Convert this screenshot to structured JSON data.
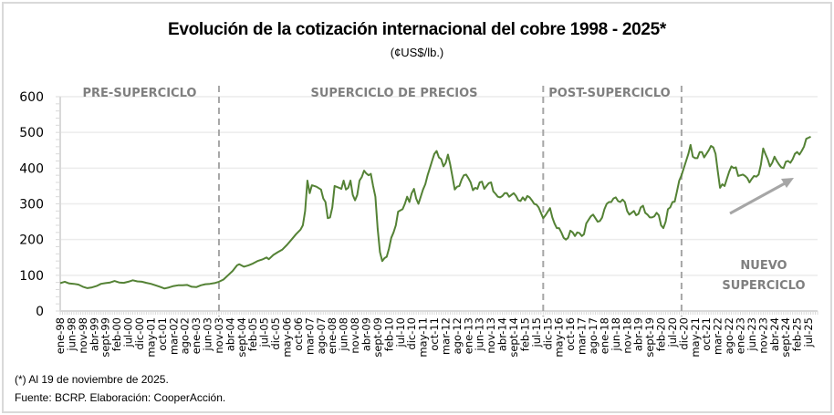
{
  "header": {
    "title": "Evolución de la cotización internacional del cobre 1998 - 2025*",
    "subtitle": "(¢US$/lb.)"
  },
  "footer": {
    "note": "(*) Al 19  de noviembre de 2025.",
    "source": "Fuente: BCRP. Elaboración: CooperAcción."
  },
  "colors": {
    "line": "#548235",
    "grid": "#ececec",
    "axis": "#d9d9d9",
    "divider": "#a6a6a6",
    "phase_text": "#7f7f7f",
    "arrow": "#a6a6a6"
  },
  "chart_data": {
    "type": "line",
    "title": "Evolución de la cotización internacional del cobre 1998 - 2025*",
    "subtitle": "(¢US$/lb.)",
    "xlabel": "",
    "ylabel": "",
    "ylim": [
      0,
      600
    ],
    "yticks": [
      0,
      100,
      200,
      300,
      400,
      500,
      600
    ],
    "grid": true,
    "legend": "none",
    "x_start": "ene-98",
    "x_step_months": 5,
    "xticks": [
      "ene-98",
      "jun-98",
      "nov-98",
      "abr-99",
      "sept-99",
      "feb-00",
      "jul-00",
      "dic-00",
      "may-01",
      "oct-01",
      "mar-02",
      "ago-02",
      "ene-03",
      "jun-03",
      "nov-03",
      "abr-04",
      "sept-04",
      "feb-05",
      "jul-05",
      "dic-05",
      "may-06",
      "oct-06",
      "mar-07",
      "ago-07",
      "ene-08",
      "jun-08",
      "nov-08",
      "abr-09",
      "sept-09",
      "feb-10",
      "jul-10",
      "dic-10",
      "may-11",
      "oct-11",
      "mar-12",
      "ago-12",
      "ene-13",
      "jun-13",
      "nov-13",
      "abr-14",
      "sept-14",
      "feb-15",
      "jul-15",
      "dic-15",
      "may-16",
      "oct-16",
      "mar-17",
      "ago-17",
      "ene-18",
      "jun-18",
      "nov-18",
      "abr-19",
      "sept-19",
      "feb-20",
      "jul-20",
      "dic-20",
      "may-21",
      "oct-21",
      "mar-22",
      "ago-22",
      "ene-23",
      "jun-23",
      "nov-23",
      "abr-24",
      "sept-24",
      "feb-25",
      "jul-25"
    ],
    "series": [
      {
        "name": "Cotización del cobre (¢US$/lb.)",
        "points_month_index_value": [
          [
            0,
            78
          ],
          [
            2,
            82
          ],
          [
            4,
            77
          ],
          [
            6,
            76
          ],
          [
            8,
            74
          ],
          [
            10,
            68
          ],
          [
            12,
            64
          ],
          [
            14,
            66
          ],
          [
            16,
            70
          ],
          [
            18,
            76
          ],
          [
            20,
            78
          ],
          [
            22,
            80
          ],
          [
            24,
            84
          ],
          [
            26,
            80
          ],
          [
            28,
            79
          ],
          [
            30,
            82
          ],
          [
            32,
            86
          ],
          [
            34,
            83
          ],
          [
            36,
            82
          ],
          [
            38,
            79
          ],
          [
            40,
            76
          ],
          [
            42,
            72
          ],
          [
            44,
            68
          ],
          [
            46,
            63
          ],
          [
            48,
            66
          ],
          [
            50,
            70
          ],
          [
            52,
            72
          ],
          [
            54,
            72
          ],
          [
            56,
            73
          ],
          [
            58,
            68
          ],
          [
            60,
            67
          ],
          [
            62,
            72
          ],
          [
            64,
            75
          ],
          [
            66,
            76
          ],
          [
            68,
            78
          ],
          [
            70,
            82
          ],
          [
            72,
            88
          ],
          [
            74,
            100
          ],
          [
            76,
            112
          ],
          [
            78,
            128
          ],
          [
            79,
            131
          ],
          [
            81,
            124
          ],
          [
            83,
            128
          ],
          [
            85,
            133
          ],
          [
            87,
            140
          ],
          [
            89,
            144
          ],
          [
            91,
            150
          ],
          [
            92,
            145
          ],
          [
            94,
            157
          ],
          [
            96,
            165
          ],
          [
            98,
            172
          ],
          [
            100,
            185
          ],
          [
            102,
            200
          ],
          [
            104,
            215
          ],
          [
            106,
            228
          ],
          [
            107,
            240
          ],
          [
            108,
            280
          ],
          [
            109,
            365
          ],
          [
            110,
            330
          ],
          [
            111,
            352
          ],
          [
            113,
            348
          ],
          [
            115,
            340
          ],
          [
            116,
            315
          ],
          [
            117,
            305
          ],
          [
            118,
            260
          ],
          [
            119,
            262
          ],
          [
            120,
            290
          ],
          [
            121,
            350
          ],
          [
            123,
            345
          ],
          [
            124,
            342
          ],
          [
            125,
            365
          ],
          [
            126,
            340
          ],
          [
            127,
            345
          ],
          [
            128,
            365
          ],
          [
            129,
            325
          ],
          [
            130,
            310
          ],
          [
            131,
            325
          ],
          [
            132,
            365
          ],
          [
            133,
            375
          ],
          [
            134,
            393
          ],
          [
            135,
            385
          ],
          [
            136,
            380
          ],
          [
            137,
            384
          ],
          [
            138,
            350
          ],
          [
            139,
            320
          ],
          [
            140,
            230
          ],
          [
            141,
            165
          ],
          [
            142,
            140
          ],
          [
            143,
            148
          ],
          [
            144,
            152
          ],
          [
            145,
            175
          ],
          [
            146,
            205
          ],
          [
            147,
            220
          ],
          [
            148,
            240
          ],
          [
            149,
            278
          ],
          [
            150,
            282
          ],
          [
            151,
            285
          ],
          [
            152,
            300
          ],
          [
            153,
            320
          ],
          [
            154,
            305
          ],
          [
            155,
            330
          ],
          [
            156,
            342
          ],
          [
            157,
            315
          ],
          [
            158,
            300
          ],
          [
            159,
            320
          ],
          [
            160,
            340
          ],
          [
            161,
            355
          ],
          [
            162,
            380
          ],
          [
            163,
            400
          ],
          [
            164,
            420
          ],
          [
            165,
            440
          ],
          [
            166,
            448
          ],
          [
            167,
            430
          ],
          [
            168,
            425
          ],
          [
            169,
            405
          ],
          [
            170,
            415
          ],
          [
            171,
            438
          ],
          [
            172,
            410
          ],
          [
            173,
            375
          ],
          [
            174,
            340
          ],
          [
            175,
            348
          ],
          [
            176,
            350
          ],
          [
            177,
            368
          ],
          [
            178,
            380
          ],
          [
            179,
            382
          ],
          [
            180,
            372
          ],
          [
            181,
            360
          ],
          [
            182,
            338
          ],
          [
            183,
            345
          ],
          [
            184,
            342
          ],
          [
            185,
            360
          ],
          [
            186,
            362
          ],
          [
            187,
            342
          ],
          [
            188,
            350
          ],
          [
            189,
            358
          ],
          [
            190,
            360
          ],
          [
            191,
            335
          ],
          [
            192,
            328
          ],
          [
            193,
            320
          ],
          [
            194,
            318
          ],
          [
            195,
            322
          ],
          [
            196,
            330
          ],
          [
            197,
            330
          ],
          [
            198,
            320
          ],
          [
            199,
            325
          ],
          [
            200,
            330
          ],
          [
            201,
            322
          ],
          [
            202,
            310
          ],
          [
            203,
            308
          ],
          [
            204,
            318
          ],
          [
            205,
            310
          ],
          [
            206,
            322
          ],
          [
            207,
            318
          ],
          [
            208,
            310
          ],
          [
            209,
            300
          ],
          [
            210,
            298
          ],
          [
            211,
            290
          ],
          [
            212,
            275
          ],
          [
            213,
            260
          ],
          [
            214,
            268
          ],
          [
            215,
            278
          ],
          [
            216,
            288
          ],
          [
            217,
            262
          ],
          [
            218,
            245
          ],
          [
            219,
            232
          ],
          [
            220,
            232
          ],
          [
            221,
            220
          ],
          [
            222,
            205
          ],
          [
            223,
            200
          ],
          [
            224,
            205
          ],
          [
            225,
            225
          ],
          [
            226,
            220
          ],
          [
            227,
            210
          ],
          [
            228,
            220
          ],
          [
            229,
            218
          ],
          [
            230,
            210
          ],
          [
            231,
            215
          ],
          [
            232,
            245
          ],
          [
            233,
            255
          ],
          [
            234,
            265
          ],
          [
            235,
            270
          ],
          [
            236,
            260
          ],
          [
            237,
            250
          ],
          [
            238,
            252
          ],
          [
            239,
            262
          ],
          [
            240,
            285
          ],
          [
            241,
            300
          ],
          [
            242,
            305
          ],
          [
            243,
            305
          ],
          [
            244,
            315
          ],
          [
            245,
            318
          ],
          [
            246,
            308
          ],
          [
            247,
            305
          ],
          [
            248,
            312
          ],
          [
            249,
            305
          ],
          [
            250,
            280
          ],
          [
            251,
            270
          ],
          [
            252,
            275
          ],
          [
            253,
            280
          ],
          [
            254,
            268
          ],
          [
            255,
            272
          ],
          [
            256,
            290
          ],
          [
            257,
            295
          ],
          [
            258,
            275
          ],
          [
            259,
            270
          ],
          [
            260,
            262
          ],
          [
            261,
            262
          ],
          [
            262,
            265
          ],
          [
            263,
            275
          ],
          [
            264,
            268
          ],
          [
            265,
            240
          ],
          [
            266,
            232
          ],
          [
            267,
            250
          ],
          [
            268,
            285
          ],
          [
            269,
            290
          ],
          [
            270,
            305
          ],
          [
            271,
            306
          ],
          [
            272,
            335
          ],
          [
            273,
            365
          ],
          [
            274,
            380
          ],
          [
            275,
            400
          ],
          [
            276,
            420
          ],
          [
            277,
            440
          ],
          [
            278,
            465
          ],
          [
            279,
            432
          ],
          [
            280,
            428
          ],
          [
            281,
            428
          ],
          [
            282,
            445
          ],
          [
            283,
            445
          ],
          [
            284,
            430
          ],
          [
            285,
            440
          ],
          [
            286,
            450
          ],
          [
            287,
            462
          ],
          [
            288,
            458
          ],
          [
            289,
            440
          ],
          [
            290,
            390
          ],
          [
            291,
            345
          ],
          [
            292,
            355
          ],
          [
            293,
            350
          ],
          [
            294,
            370
          ],
          [
            295,
            390
          ],
          [
            296,
            405
          ],
          [
            297,
            400
          ],
          [
            298,
            402
          ],
          [
            299,
            378
          ],
          [
            300,
            380
          ],
          [
            301,
            382
          ],
          [
            302,
            378
          ],
          [
            303,
            372
          ],
          [
            304,
            360
          ],
          [
            305,
            370
          ],
          [
            306,
            378
          ],
          [
            307,
            376
          ],
          [
            308,
            382
          ],
          [
            309,
            410
          ],
          [
            310,
            455
          ],
          [
            311,
            440
          ],
          [
            312,
            425
          ],
          [
            313,
            405
          ],
          [
            314,
            415
          ],
          [
            315,
            432
          ],
          [
            316,
            420
          ],
          [
            317,
            410
          ],
          [
            318,
            402
          ],
          [
            319,
            400
          ],
          [
            320,
            418
          ],
          [
            321,
            420
          ],
          [
            322,
            415
          ],
          [
            323,
            425
          ],
          [
            324,
            440
          ],
          [
            325,
            445
          ],
          [
            326,
            438
          ],
          [
            327,
            448
          ],
          [
            328,
            460
          ],
          [
            329,
            482
          ],
          [
            330,
            485
          ],
          [
            331,
            488
          ]
        ]
      }
    ],
    "dividers_month_index": [
      70,
      213,
      274
    ],
    "phases": [
      {
        "label": "PRE-SUPERCICLO"
      },
      {
        "label": "SUPERCICLO DE PRECIOS"
      },
      {
        "label": "POST-SUPERCICLO"
      },
      {
        "label_line1": "NUEVO",
        "label_line2": "SUPERCICLO"
      }
    ],
    "annotations": [
      "trend-arrow up-right in NUEVO SUPERCICLO phase"
    ]
  }
}
